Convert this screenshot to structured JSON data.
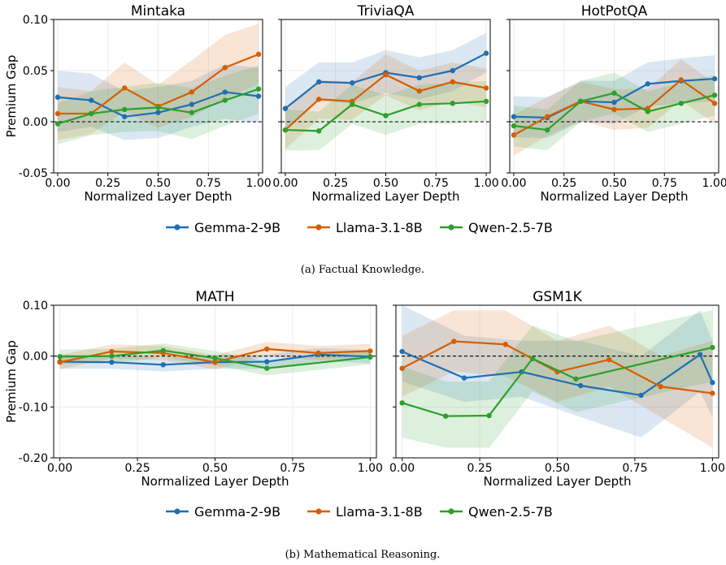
{
  "colors": {
    "gemma": "#1f6fb4",
    "llama": "#d55e00",
    "qwen": "#2ca02c"
  },
  "captions": {
    "a": "(a) Factual Knowledge.",
    "b": "(b) Mathematical Reasoning."
  },
  "legend": {
    "items": [
      "Gemma-2-9B",
      "Llama-3.1-8B",
      "Qwen-2.5-7B"
    ]
  },
  "chart_data": [
    {
      "type": "line",
      "title": "Mintaka",
      "xlabel": "Normalized Layer Depth",
      "ylabel": "Premium Gap",
      "xlim": [
        0,
        1
      ],
      "ylim": [
        -0.05,
        0.1
      ],
      "xticks": [
        "0.00",
        "0.25",
        "0.50",
        "0.75",
        "1.00"
      ],
      "yticks": [
        "-0.05",
        "0.00",
        "0.05",
        "0.10"
      ],
      "grid": true,
      "reference_line_y": 0,
      "series": [
        {
          "name": "Gemma-2-9B",
          "x": [
            0,
            0.167,
            0.333,
            0.5,
            0.667,
            0.833,
            1.0
          ],
          "y": [
            0.024,
            0.021,
            0.005,
            0.009,
            0.017,
            0.029,
            0.025
          ],
          "band_lo": [
            -0.01,
            -0.005,
            -0.018,
            -0.016,
            -0.005,
            0.003,
            -0.001
          ],
          "band_hi": [
            0.05,
            0.047,
            0.03,
            0.034,
            0.04,
            0.056,
            0.053
          ]
        },
        {
          "name": "Llama-3.1-8B",
          "x": [
            0,
            0.167,
            0.333,
            0.5,
            0.667,
            0.833,
            1.0
          ],
          "y": [
            0.008,
            0.008,
            0.033,
            0.015,
            0.029,
            0.053,
            0.066
          ],
          "band_lo": [
            -0.018,
            -0.012,
            0.01,
            -0.006,
            0.005,
            0.022,
            0.037
          ],
          "band_hi": [
            0.034,
            0.03,
            0.058,
            0.036,
            0.06,
            0.085,
            0.096
          ]
        },
        {
          "name": "Qwen-2.5-7B",
          "x": [
            0,
            0.167,
            0.333,
            0.5,
            0.667,
            0.833,
            1.0
          ],
          "y": [
            -0.002,
            0.008,
            0.012,
            0.014,
            0.009,
            0.021,
            0.032
          ],
          "band_lo": [
            -0.022,
            -0.013,
            -0.01,
            -0.009,
            -0.017,
            -0.004,
            0.008
          ],
          "band_hi": [
            0.018,
            0.03,
            0.034,
            0.038,
            0.033,
            0.045,
            0.055
          ]
        }
      ]
    },
    {
      "type": "line",
      "title": "TriviaQA",
      "xlabel": "Normalized Layer Depth",
      "xlim": [
        0,
        1
      ],
      "ylim": [
        -0.05,
        0.1
      ],
      "xticks": [
        "0.00",
        "0.25",
        "0.50",
        "0.75",
        "1.00"
      ],
      "grid": true,
      "reference_line_y": 0,
      "series": [
        {
          "name": "Gemma-2-9B",
          "x": [
            0,
            0.167,
            0.333,
            0.5,
            0.667,
            0.833,
            1.0
          ],
          "y": [
            0.013,
            0.039,
            0.038,
            0.048,
            0.043,
            0.05,
            0.067
          ],
          "band_lo": [
            -0.008,
            0.02,
            0.018,
            0.028,
            0.022,
            0.03,
            0.048
          ],
          "band_hi": [
            0.034,
            0.058,
            0.058,
            0.07,
            0.063,
            0.07,
            0.087
          ]
        },
        {
          "name": "Llama-3.1-8B",
          "x": [
            0,
            0.167,
            0.333,
            0.5,
            0.667,
            0.833,
            1.0
          ],
          "y": [
            -0.008,
            0.022,
            0.02,
            0.046,
            0.03,
            0.039,
            0.033
          ],
          "band_lo": [
            -0.027,
            0.003,
            0.002,
            0.026,
            0.011,
            0.02,
            0.014
          ],
          "band_hi": [
            0.011,
            0.041,
            0.039,
            0.066,
            0.05,
            0.058,
            0.052
          ]
        },
        {
          "name": "Qwen-2.5-7B",
          "x": [
            0,
            0.167,
            0.333,
            0.5,
            0.667,
            0.833,
            1.0
          ],
          "y": [
            -0.008,
            -0.009,
            0.017,
            0.006,
            0.017,
            0.018,
            0.02
          ],
          "band_lo": [
            -0.028,
            -0.028,
            -0.002,
            -0.013,
            -0.002,
            -0.002,
            0.001
          ],
          "band_hi": [
            0.012,
            0.01,
            0.036,
            0.026,
            0.036,
            0.038,
            0.04
          ]
        }
      ]
    },
    {
      "type": "line",
      "title": "HotPotQA",
      "xlabel": "Normalized Layer Depth",
      "xlim": [
        0,
        1
      ],
      "ylim": [
        -0.05,
        0.1
      ],
      "xticks": [
        "0.00",
        "0.25",
        "0.50",
        "0.75",
        "1.00"
      ],
      "grid": true,
      "reference_line_y": 0,
      "series": [
        {
          "name": "Gemma-2-9B",
          "x": [
            0,
            0.167,
            0.333,
            0.5,
            0.667,
            0.833,
            1.0
          ],
          "y": [
            0.005,
            0.004,
            0.02,
            0.019,
            0.037,
            0.04,
            0.042
          ],
          "band_lo": [
            -0.015,
            -0.016,
            0.0,
            -0.002,
            0.015,
            0.018,
            0.02
          ],
          "band_hi": [
            0.025,
            0.024,
            0.04,
            0.04,
            0.058,
            0.062,
            0.065
          ]
        },
        {
          "name": "Llama-3.1-8B",
          "x": [
            0,
            0.167,
            0.333,
            0.5,
            0.667,
            0.833,
            1.0
          ],
          "y": [
            -0.013,
            0.005,
            0.02,
            0.012,
            0.013,
            0.041,
            0.018
          ],
          "band_lo": [
            -0.033,
            -0.014,
            0.001,
            -0.008,
            -0.006,
            0.021,
            -0.002
          ],
          "band_hi": [
            0.007,
            0.024,
            0.039,
            0.032,
            0.032,
            0.061,
            0.038
          ]
        },
        {
          "name": "Qwen-2.5-7B",
          "x": [
            0,
            0.167,
            0.333,
            0.5,
            0.667,
            0.833,
            1.0
          ],
          "y": [
            -0.004,
            -0.008,
            0.02,
            0.028,
            0.01,
            0.018,
            0.026
          ],
          "band_lo": [
            -0.024,
            -0.028,
            0.0,
            0.008,
            -0.01,
            -0.002,
            0.006
          ],
          "band_hi": [
            0.016,
            0.012,
            0.04,
            0.048,
            0.03,
            0.038,
            0.046
          ]
        }
      ]
    },
    {
      "type": "line",
      "title": "MATH",
      "xlabel": "Normalized Layer Depth",
      "ylabel": "Premium Gap",
      "xlim": [
        0,
        1
      ],
      "ylim": [
        -0.2,
        0.1
      ],
      "xticks": [
        "0.00",
        "0.25",
        "0.50",
        "0.75",
        "1.00"
      ],
      "yticks": [
        "-0.20",
        "-0.10",
        "0.00",
        "0.10"
      ],
      "grid": true,
      "reference_line_y": 0,
      "series": [
        {
          "name": "Gemma-2-9B",
          "x": [
            0,
            0.167,
            0.333,
            0.5,
            0.667,
            0.833,
            1.0
          ],
          "y": [
            -0.011,
            -0.012,
            -0.017,
            -0.012,
            -0.011,
            0.003,
            -0.001
          ],
          "band_lo": [
            -0.025,
            -0.025,
            -0.03,
            -0.025,
            -0.025,
            -0.01,
            -0.014
          ],
          "band_hi": [
            0.003,
            0.002,
            -0.004,
            0.002,
            0.003,
            0.016,
            0.012
          ]
        },
        {
          "name": "Llama-3.1-8B",
          "x": [
            0,
            0.167,
            0.333,
            0.5,
            0.667,
            0.833,
            1.0
          ],
          "y": [
            -0.012,
            0.009,
            0.006,
            -0.012,
            0.014,
            0.006,
            0.01
          ],
          "band_lo": [
            -0.026,
            -0.005,
            -0.008,
            -0.026,
            0.0,
            -0.008,
            -0.004
          ],
          "band_hi": [
            0.002,
            0.023,
            0.02,
            0.002,
            0.028,
            0.02,
            0.024
          ]
        },
        {
          "name": "Qwen-2.5-7B",
          "x": [
            0,
            0.167,
            0.333,
            0.5,
            0.667,
            1.0
          ],
          "y": [
            -0.001,
            0.0,
            0.011,
            -0.004,
            -0.024,
            -0.002
          ],
          "band_lo": [
            -0.015,
            -0.014,
            -0.003,
            -0.018,
            -0.038,
            -0.016
          ],
          "band_hi": [
            0.013,
            0.014,
            0.025,
            0.01,
            -0.01,
            0.012
          ]
        }
      ]
    },
    {
      "type": "line",
      "title": "GSM1K",
      "xlabel": "Normalized Layer Depth",
      "xlim": [
        0,
        1
      ],
      "ylim": [
        -0.2,
        0.1
      ],
      "xticks": [
        "0.00",
        "0.25",
        "0.50",
        "0.75",
        "1.00"
      ],
      "grid": true,
      "reference_line_y": 0,
      "series": [
        {
          "name": "Gemma-2-9B",
          "x": [
            0,
            0.2,
            0.385,
            0.575,
            0.77,
            0.96,
            1.0
          ],
          "y": [
            0.009,
            -0.043,
            -0.031,
            -0.058,
            -0.077,
            0.003,
            -0.052
          ],
          "band_lo": [
            -0.05,
            -0.09,
            -0.08,
            -0.12,
            -0.16,
            -0.07,
            -0.12
          ],
          "band_hi": [
            0.1,
            0.04,
            0.03,
            0.03,
            0.0,
            0.09,
            0.03
          ]
        },
        {
          "name": "Llama-3.1-8B",
          "x": [
            0,
            0.167,
            0.333,
            0.5,
            0.667,
            0.833,
            1.0
          ],
          "y": [
            -0.024,
            0.029,
            0.023,
            -0.031,
            -0.007,
            -0.06,
            -0.073
          ],
          "band_lo": [
            -0.08,
            -0.03,
            -0.04,
            -0.09,
            -0.06,
            -0.12,
            -0.18
          ],
          "band_hi": [
            0.04,
            0.09,
            0.09,
            0.03,
            0.06,
            0.0,
            0.03
          ]
        },
        {
          "name": "Qwen-2.5-7B",
          "x": [
            0,
            0.14,
            0.28,
            0.42,
            0.56,
            1.0
          ],
          "y": [
            -0.092,
            -0.118,
            -0.117,
            -0.005,
            -0.045,
            0.017
          ],
          "band_lo": [
            -0.16,
            -0.18,
            -0.18,
            -0.07,
            -0.11,
            -0.05
          ],
          "band_hi": [
            -0.02,
            -0.05,
            -0.05,
            0.06,
            0.03,
            0.09
          ]
        }
      ]
    }
  ]
}
